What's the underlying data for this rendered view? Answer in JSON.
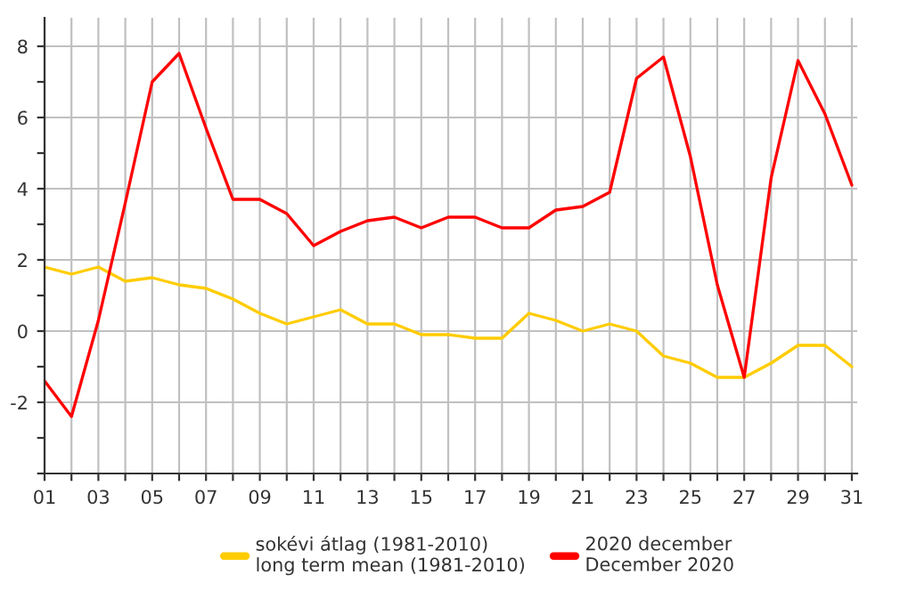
{
  "chart_data": {
    "type": "line",
    "x": [
      1,
      2,
      3,
      4,
      5,
      6,
      7,
      8,
      9,
      10,
      11,
      12,
      13,
      14,
      15,
      16,
      17,
      18,
      19,
      20,
      21,
      22,
      23,
      24,
      25,
      26,
      27,
      28,
      29,
      30,
      31
    ],
    "series": [
      {
        "name": "sokévi átlag (1981-2010)\nlong term mean (1981-2010)",
        "color": "#ffcc00",
        "values": [
          1.8,
          1.6,
          1.8,
          1.4,
          1.5,
          1.3,
          1.2,
          0.9,
          0.5,
          0.2,
          0.4,
          0.6,
          0.2,
          0.2,
          -0.1,
          -0.1,
          -0.2,
          -0.2,
          0.5,
          0.3,
          0.0,
          0.2,
          0.0,
          -0.7,
          -0.9,
          -1.3,
          -1.3,
          -0.9,
          -0.4,
          -0.4,
          -1.0
        ]
      },
      {
        "name": "2020 december\nDecember 2020",
        "color": "#ff0000",
        "values": [
          -1.4,
          -2.4,
          0.3,
          3.6,
          7.0,
          7.8,
          5.7,
          3.7,
          3.7,
          3.3,
          2.4,
          2.8,
          3.1,
          3.2,
          2.9,
          3.2,
          3.2,
          2.9,
          2.9,
          3.4,
          3.5,
          3.9,
          7.1,
          7.7,
          4.9,
          1.3,
          -1.3,
          4.3,
          7.6,
          6.1,
          4.1
        ]
      }
    ],
    "xlim": [
      1,
      31.2
    ],
    "xticks": [
      {
        "value": 1,
        "label": "01"
      },
      {
        "value": 2,
        "label": null
      },
      {
        "value": 3,
        "label": "03"
      },
      {
        "value": 4,
        "label": null
      },
      {
        "value": 5,
        "label": "05"
      },
      {
        "value": 6,
        "label": null
      },
      {
        "value": 7,
        "label": "07"
      },
      {
        "value": 8,
        "label": null
      },
      {
        "value": 9,
        "label": "09"
      },
      {
        "value": 10,
        "label": null
      },
      {
        "value": 11,
        "label": "11"
      },
      {
        "value": 12,
        "label": null
      },
      {
        "value": 13,
        "label": "13"
      },
      {
        "value": 14,
        "label": null
      },
      {
        "value": 15,
        "label": "15"
      },
      {
        "value": 16,
        "label": null
      },
      {
        "value": 17,
        "label": "17"
      },
      {
        "value": 18,
        "label": null
      },
      {
        "value": 19,
        "label": "19"
      },
      {
        "value": 20,
        "label": null
      },
      {
        "value": 21,
        "label": "21"
      },
      {
        "value": 22,
        "label": null
      },
      {
        "value": 23,
        "label": "23"
      },
      {
        "value": 24,
        "label": null
      },
      {
        "value": 25,
        "label": "25"
      },
      {
        "value": 26,
        "label": null
      },
      {
        "value": 27,
        "label": "27"
      },
      {
        "value": 28,
        "label": null
      },
      {
        "value": 29,
        "label": "29"
      },
      {
        "value": 30,
        "label": null
      },
      {
        "value": 31,
        "label": "31"
      }
    ],
    "ylim": [
      -4,
      8.8
    ],
    "yticks": [
      {
        "value": -4,
        "label": null
      },
      {
        "value": -3,
        "label": null
      },
      -2,
      {
        "value": -1,
        "label": null
      },
      0,
      {
        "value": 1,
        "label": null
      },
      2,
      {
        "value": 3,
        "label": null
      },
      4,
      {
        "value": 5,
        "label": null
      },
      6,
      {
        "value": 7,
        "label": null
      },
      8
    ],
    "grid": true,
    "legend": "bottom",
    "marker": "none",
    "line_style": "solid"
  }
}
